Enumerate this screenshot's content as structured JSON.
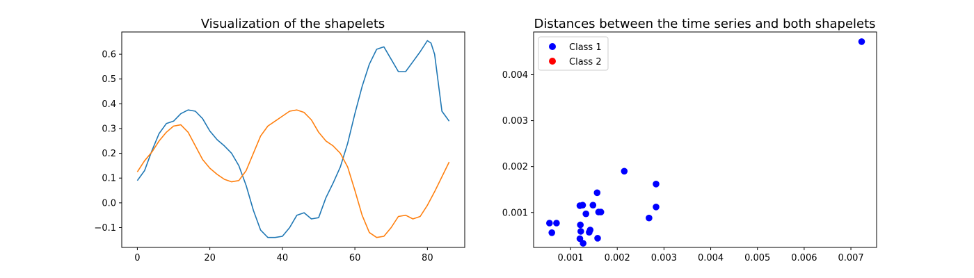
{
  "chart_data": [
    {
      "type": "line",
      "title": "Visualization of the shapelets",
      "xlabel": "",
      "ylabel": "",
      "xlim": [
        -4.3,
        90.3
      ],
      "ylim": [
        -0.18,
        0.69
      ],
      "xticks": [
        0,
        20,
        40,
        60,
        80
      ],
      "yticks": [
        -0.1,
        0.0,
        0.1,
        0.2,
        0.3,
        0.4,
        0.5,
        0.6
      ],
      "grid": false,
      "series": [
        {
          "color": "#1f77b4",
          "x": [
            0,
            2,
            4,
            6,
            8,
            10,
            12,
            14,
            16,
            18,
            20,
            22,
            24,
            26,
            28,
            30,
            32,
            34,
            36,
            38,
            40,
            42,
            44,
            46,
            48,
            50,
            52,
            54,
            56,
            58,
            60,
            62,
            64,
            66,
            68,
            70,
            72,
            74,
            76,
            78,
            80,
            81,
            82,
            84,
            85,
            86
          ],
          "y": [
            0.09,
            0.13,
            0.21,
            0.28,
            0.32,
            0.33,
            0.36,
            0.375,
            0.37,
            0.34,
            0.29,
            0.255,
            0.23,
            0.2,
            0.15,
            0.07,
            -0.03,
            -0.11,
            -0.14,
            -0.14,
            -0.135,
            -0.1,
            -0.05,
            -0.04,
            -0.065,
            -0.06,
            0.02,
            0.08,
            0.145,
            0.24,
            0.36,
            0.47,
            0.56,
            0.62,
            0.63,
            0.58,
            0.53,
            0.53,
            0.57,
            0.61,
            0.655,
            0.645,
            0.6,
            0.37,
            0.35,
            0.33
          ]
        },
        {
          "color": "#ff7f0e",
          "x": [
            0,
            2,
            4,
            6,
            8,
            10,
            12,
            14,
            16,
            18,
            20,
            22,
            24,
            26,
            28,
            30,
            32,
            34,
            36,
            38,
            40,
            42,
            44,
            46,
            48,
            50,
            52,
            54,
            56,
            58,
            60,
            62,
            64,
            66,
            68,
            70,
            72,
            74,
            76,
            78,
            80,
            82,
            84,
            86
          ],
          "y": [
            0.125,
            0.17,
            0.205,
            0.25,
            0.285,
            0.31,
            0.315,
            0.285,
            0.23,
            0.175,
            0.14,
            0.115,
            0.095,
            0.085,
            0.09,
            0.13,
            0.2,
            0.27,
            0.31,
            0.33,
            0.35,
            0.37,
            0.375,
            0.365,
            0.335,
            0.285,
            0.25,
            0.23,
            0.2,
            0.145,
            0.05,
            -0.05,
            -0.12,
            -0.14,
            -0.135,
            -0.1,
            -0.055,
            -0.05,
            -0.065,
            -0.055,
            -0.01,
            0.045,
            0.105,
            0.165
          ]
        }
      ]
    },
    {
      "type": "scatter",
      "title": "Distances between the time series and both shapelets",
      "xlabel": "",
      "ylabel": "",
      "xlim": [
        0.00021,
        0.00755
      ],
      "ylim": [
        0.00024,
        0.00493
      ],
      "xticks": [
        0.001,
        0.002,
        0.003,
        0.004,
        0.005,
        0.006,
        0.007
      ],
      "xtick_labels": [
        "0.001",
        "0.002",
        "0.003",
        "0.004",
        "0.005",
        "0.006",
        "0.007"
      ],
      "yticks": [
        0.001,
        0.002,
        0.003,
        0.004
      ],
      "ytick_labels": [
        "0.001",
        "0.002",
        "0.003",
        "0.004"
      ],
      "grid": false,
      "legend": "top-left",
      "series": [
        {
          "name": "Class 1",
          "color": "#0000ff",
          "x": [
            0.00055,
            0.0006,
            0.0007,
            0.0012,
            0.00121,
            0.00122,
            0.00126,
            0.00127,
            0.0012,
            0.00133,
            0.0014,
            0.00142,
            0.00148,
            0.00157,
            0.00158,
            0.0016,
            0.00165,
            0.00215,
            0.00268,
            0.00283,
            0.00283,
            0.00723
          ],
          "y": [
            0.00077,
            0.00056,
            0.00077,
            0.00115,
            0.00073,
            0.00059,
            0.00116,
            0.00033,
            0.00043,
            0.00097,
            0.00057,
            0.00062,
            0.00116,
            0.00143,
            0.00044,
            0.00101,
            0.00101,
            0.0019,
            0.00088,
            0.00162,
            0.00112,
            0.00472
          ]
        },
        {
          "name": "Class 2",
          "color": "#ff0000",
          "x": [],
          "y": []
        }
      ]
    }
  ]
}
